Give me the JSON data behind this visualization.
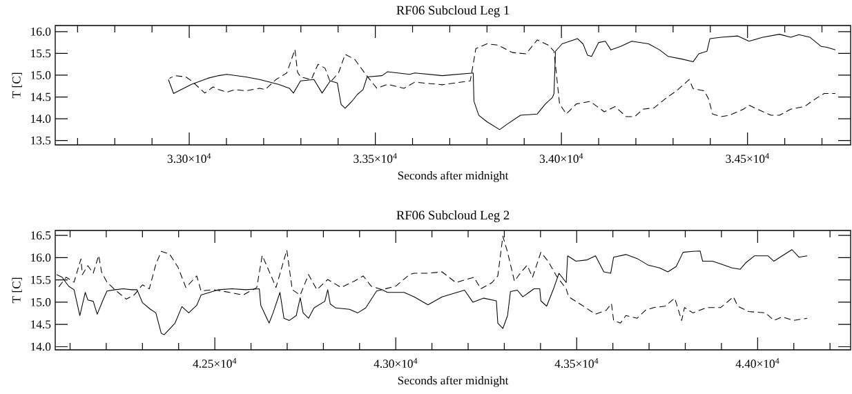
{
  "chart_data": [
    {
      "type": "line",
      "title": "RF06 Subcloud Leg 1",
      "xlabel": "Seconds after midnight",
      "ylabel": "T [C]",
      "xlim": [
        32640,
        34777
      ],
      "ylim": [
        13.4,
        16.14
      ],
      "xticks": [
        {
          "value": 32700,
          "label": null
        },
        {
          "value": 32800,
          "label": null
        },
        {
          "value": 32900,
          "label": null
        },
        {
          "value": 33000,
          "label": "3.30×10$^{4}$"
        },
        {
          "value": 33100,
          "label": null
        },
        {
          "value": 33200,
          "label": null
        },
        {
          "value": 33300,
          "label": null
        },
        {
          "value": 33400,
          "label": null
        },
        {
          "value": 33500,
          "label": "3.35×10$^{4}$"
        },
        {
          "value": 33600,
          "label": null
        },
        {
          "value": 33700,
          "label": null
        },
        {
          "value": 33800,
          "label": null
        },
        {
          "value": 33900,
          "label": null
        },
        {
          "value": 34000,
          "label": "3.40×10$^{4}$"
        },
        {
          "value": 34100,
          "label": null
        },
        {
          "value": 34200,
          "label": null
        },
        {
          "value": 34300,
          "label": null
        },
        {
          "value": 34400,
          "label": null
        },
        {
          "value": 34500,
          "label": "3.45×10$^{4}$"
        },
        {
          "value": 34600,
          "label": null
        },
        {
          "value": 34700,
          "label": null
        }
      ],
      "yticks": [
        {
          "value": 13.5,
          "label": "13.5"
        },
        {
          "value": 14,
          "label": "14.0"
        },
        {
          "value": 14.5,
          "label": "14.5"
        },
        {
          "value": 15,
          "label": "15.0"
        },
        {
          "value": 15.5,
          "label": "15.5"
        },
        {
          "value": 16,
          "label": "16.0"
        }
      ],
      "series": [
        {
          "color": "#000000",
          "line_style": "solid",
          "x": [
            32944,
            32958,
            33006,
            33050,
            33079,
            33101,
            33152,
            33189,
            33240,
            33269,
            33280,
            33299,
            33335,
            33357,
            33379,
            33398,
            33408,
            33419,
            33438,
            33452,
            33467,
            33478,
            33518,
            33533,
            33592,
            33606,
            33680,
            33763,
            33765,
            33778,
            33800,
            33834,
            33853,
            33890,
            33935,
            33957,
            33976,
            33980,
            33984,
            34002,
            34043,
            34058,
            34070,
            34081,
            34100,
            34118,
            34133,
            34159,
            34189,
            34234,
            34264,
            34287,
            34324,
            34354,
            34369,
            34391,
            34399,
            34429,
            34474,
            34504,
            34541,
            34586,
            34616,
            34638,
            34668,
            34698,
            34713,
            34736
          ],
          "values": [
            14.9,
            14.58,
            14.79,
            14.93,
            14.99,
            15.02,
            14.96,
            14.9,
            14.79,
            14.7,
            14.59,
            14.87,
            14.9,
            14.59,
            14.87,
            14.82,
            14.33,
            14.24,
            14.41,
            14.56,
            14.67,
            14.96,
            14.99,
            15.08,
            15.02,
            15.05,
            14.99,
            15.05,
            14.4,
            14.08,
            13.93,
            13.75,
            13.87,
            14.08,
            14.11,
            14.34,
            14.49,
            14.58,
            15.55,
            15.72,
            15.84,
            15.72,
            15.46,
            15.43,
            15.75,
            15.78,
            15.58,
            15.66,
            15.78,
            15.72,
            15.58,
            15.43,
            15.37,
            15.31,
            15.49,
            15.55,
            15.84,
            15.87,
            15.9,
            15.78,
            15.87,
            15.94,
            15.87,
            15.93,
            15.87,
            15.66,
            15.64,
            15.58
          ]
        },
        {
          "color": "#000000",
          "line_style": "dashed",
          "x": [
            32947,
            32962,
            32991,
            33006,
            33042,
            33064,
            33079,
            33101,
            33123,
            33152,
            33189,
            33204,
            33233,
            33262,
            33284,
            33291,
            33299,
            33328,
            33346,
            33365,
            33379,
            33401,
            33419,
            33445,
            33474,
            33504,
            33533,
            33577,
            33606,
            33680,
            33755,
            33766,
            33770,
            33800,
            33830,
            33868,
            33905,
            33935,
            33965,
            33980,
            33995,
            34013,
            34040,
            34077,
            34115,
            34144,
            34174,
            34197,
            34219,
            34249,
            34279,
            34309,
            34343,
            34354,
            34384,
            34395,
            34406,
            34429,
            34451,
            34489,
            34504,
            34526,
            34563,
            34586,
            34616,
            34653,
            34683,
            34706,
            34736
          ],
          "values": [
            14.93,
            14.99,
            14.96,
            14.87,
            14.59,
            14.73,
            14.67,
            14.61,
            14.67,
            14.64,
            14.7,
            14.67,
            14.9,
            15.05,
            15.59,
            15.07,
            14.96,
            14.9,
            15.25,
            15.16,
            14.84,
            15.05,
            15.48,
            15.36,
            15.02,
            14.7,
            14.79,
            14.7,
            14.84,
            14.78,
            14.87,
            15.4,
            15.61,
            15.72,
            15.69,
            15.52,
            15.49,
            15.81,
            15.69,
            15.55,
            14.34,
            14.11,
            14.34,
            14.4,
            14.16,
            14.28,
            14.05,
            14.05,
            14.22,
            14.25,
            14.46,
            14.64,
            14.9,
            14.69,
            14.64,
            14.46,
            14.11,
            14.05,
            14.08,
            14.22,
            14.31,
            14.22,
            14.08,
            14.08,
            14.22,
            14.28,
            14.46,
            14.58,
            14.58
          ]
        }
      ]
    },
    {
      "type": "line",
      "title": "RF06 Subcloud Leg 2",
      "xlabel": "Seconds after midnight",
      "ylabel": "T [C]",
      "xlim": [
        42059,
        44257
      ],
      "ylim": [
        13.93,
        16.61
      ],
      "xticks": [
        {
          "value": 42100,
          "label": null
        },
        {
          "value": 42200,
          "label": null
        },
        {
          "value": 42300,
          "label": null
        },
        {
          "value": 42400,
          "label": null
        },
        {
          "value": 42500,
          "label": "4.25×10$^{4}$"
        },
        {
          "value": 42600,
          "label": null
        },
        {
          "value": 42700,
          "label": null
        },
        {
          "value": 42800,
          "label": null
        },
        {
          "value": 42900,
          "label": null
        },
        {
          "value": 43000,
          "label": "4.30×10$^{4}$"
        },
        {
          "value": 43100,
          "label": null
        },
        {
          "value": 43200,
          "label": null
        },
        {
          "value": 43300,
          "label": null
        },
        {
          "value": 43400,
          "label": null
        },
        {
          "value": 43500,
          "label": "4.35×10$^{4}$"
        },
        {
          "value": 43600,
          "label": null
        },
        {
          "value": 43700,
          "label": null
        },
        {
          "value": 43800,
          "label": null
        },
        {
          "value": 43900,
          "label": null
        },
        {
          "value": 44000,
          "label": "4.40×10$^{4}$"
        },
        {
          "value": 44100,
          "label": null
        },
        {
          "value": 44200,
          "label": null
        }
      ],
      "yticks": [
        {
          "value": 14,
          "label": "14.0"
        },
        {
          "value": 14.5,
          "label": "14.5"
        },
        {
          "value": 15,
          "label": "15.0"
        },
        {
          "value": 15.5,
          "label": "15.5"
        },
        {
          "value": 16,
          "label": "16.0"
        },
        {
          "value": 16.5,
          "label": "16.5"
        }
      ],
      "series": [
        {
          "color": "#000000",
          "line_style": "solid",
          "x": [
            42063,
            42078,
            42096,
            42111,
            42127,
            42142,
            42149,
            42164,
            42175,
            42191,
            42202,
            42224,
            42247,
            42270,
            42285,
            42300,
            42322,
            42337,
            42352,
            42360,
            42390,
            42409,
            42428,
            42450,
            42462,
            42511,
            42548,
            42586,
            42623,
            42627,
            42650,
            42661,
            42680,
            42691,
            42706,
            42725,
            42736,
            42744,
            42759,
            42774,
            42804,
            42812,
            42819,
            42834,
            42872,
            42895,
            42917,
            42947,
            42962,
            42977,
            43023,
            43051,
            43089,
            43128,
            43190,
            43213,
            43243,
            43278,
            43282,
            43296,
            43309,
            43317,
            43336,
            43351,
            43382,
            43398,
            43401,
            43417,
            43436,
            43451,
            43471,
            43475,
            43498,
            43529,
            43552,
            43575,
            43594,
            43602,
            43636,
            43667,
            43698,
            43729,
            43752,
            43775,
            43794,
            43821,
            43841,
            43848,
            43875,
            43898,
            43929,
            43952,
            43968,
            43991,
            44029,
            44045,
            44068,
            44095,
            44114,
            44137
          ],
          "values": [
            15.62,
            15.56,
            15.36,
            15.28,
            14.7,
            15.22,
            15.05,
            15.02,
            14.73,
            15.05,
            15.25,
            15.28,
            15.3,
            15.28,
            15.28,
            14.99,
            14.84,
            14.76,
            14.3,
            14.27,
            14.53,
            14.9,
            14.76,
            14.93,
            15.16,
            15.28,
            15.3,
            15.28,
            15.3,
            14.93,
            14.53,
            14.76,
            15.22,
            14.64,
            14.59,
            14.7,
            15.1,
            14.76,
            14.64,
            14.87,
            15.02,
            15.28,
            14.96,
            14.87,
            14.84,
            14.76,
            14.87,
            15.25,
            15.28,
            15.22,
            15.22,
            15.12,
            14.94,
            15.12,
            15.27,
            15.0,
            15.09,
            15.03,
            14.53,
            14.41,
            14.7,
            15.24,
            15.27,
            15.12,
            15.3,
            15.3,
            15.03,
            14.91,
            15.3,
            15.65,
            15.44,
            16.04,
            15.92,
            15.95,
            16.04,
            15.68,
            15.65,
            16.01,
            16.07,
            15.98,
            15.83,
            15.77,
            15.68,
            15.8,
            16.12,
            16.14,
            16.15,
            15.92,
            15.92,
            15.86,
            15.77,
            15.74,
            15.89,
            16.04,
            16.04,
            15.92,
            16.04,
            16.18,
            16.01,
            16.04
          ]
        },
        {
          "color": "#000000",
          "line_style": "dashed",
          "x": [
            42063,
            42089,
            42111,
            42130,
            42134,
            42149,
            42164,
            42179,
            42187,
            42202,
            42224,
            42255,
            42277,
            42300,
            42319,
            42337,
            42352,
            42375,
            42398,
            42420,
            42450,
            42462,
            42495,
            42541,
            42578,
            42616,
            42631,
            42654,
            42669,
            42699,
            42714,
            42736,
            42759,
            42782,
            42812,
            42849,
            42887,
            42910,
            42932,
            42962,
            43000,
            43038,
            43051,
            43089,
            43128,
            43166,
            43216,
            43235,
            43266,
            43282,
            43296,
            43309,
            43328,
            43344,
            43363,
            43378,
            43401,
            43421,
            43444,
            43471,
            43478,
            43513,
            43552,
            43582,
            43596,
            43602,
            43621,
            43636,
            43667,
            43690,
            43713,
            43744,
            43771,
            43790,
            43798,
            43821,
            43860,
            43898,
            43933,
            43945,
            43975,
            44022,
            44045,
            44068,
            44099,
            44137
          ],
          "values": [
            15.28,
            15.56,
            15.45,
            15.97,
            15.62,
            15.82,
            15.65,
            16.05,
            15.68,
            15.45,
            15.28,
            15.07,
            15.16,
            15.39,
            15.3,
            15.85,
            16.14,
            16.08,
            15.79,
            15.33,
            15.59,
            15.25,
            15.28,
            15.22,
            15.16,
            15.33,
            16.05,
            15.62,
            15.33,
            16.17,
            15.28,
            15.16,
            15.62,
            15.28,
            15.51,
            15.33,
            15.48,
            15.59,
            15.36,
            15.28,
            15.36,
            15.62,
            15.65,
            15.65,
            15.68,
            15.44,
            15.56,
            15.3,
            15.44,
            15.59,
            16.48,
            16.12,
            15.47,
            15.65,
            15.83,
            15.56,
            16.12,
            15.92,
            15.59,
            15.3,
            15.12,
            14.94,
            14.73,
            14.82,
            14.97,
            14.59,
            14.53,
            14.7,
            14.64,
            14.82,
            14.88,
            14.91,
            15.09,
            14.59,
            14.88,
            14.76,
            14.88,
            14.88,
            15.12,
            14.91,
            14.79,
            14.76,
            14.59,
            14.67,
            14.59,
            14.64
          ]
        }
      ]
    }
  ]
}
